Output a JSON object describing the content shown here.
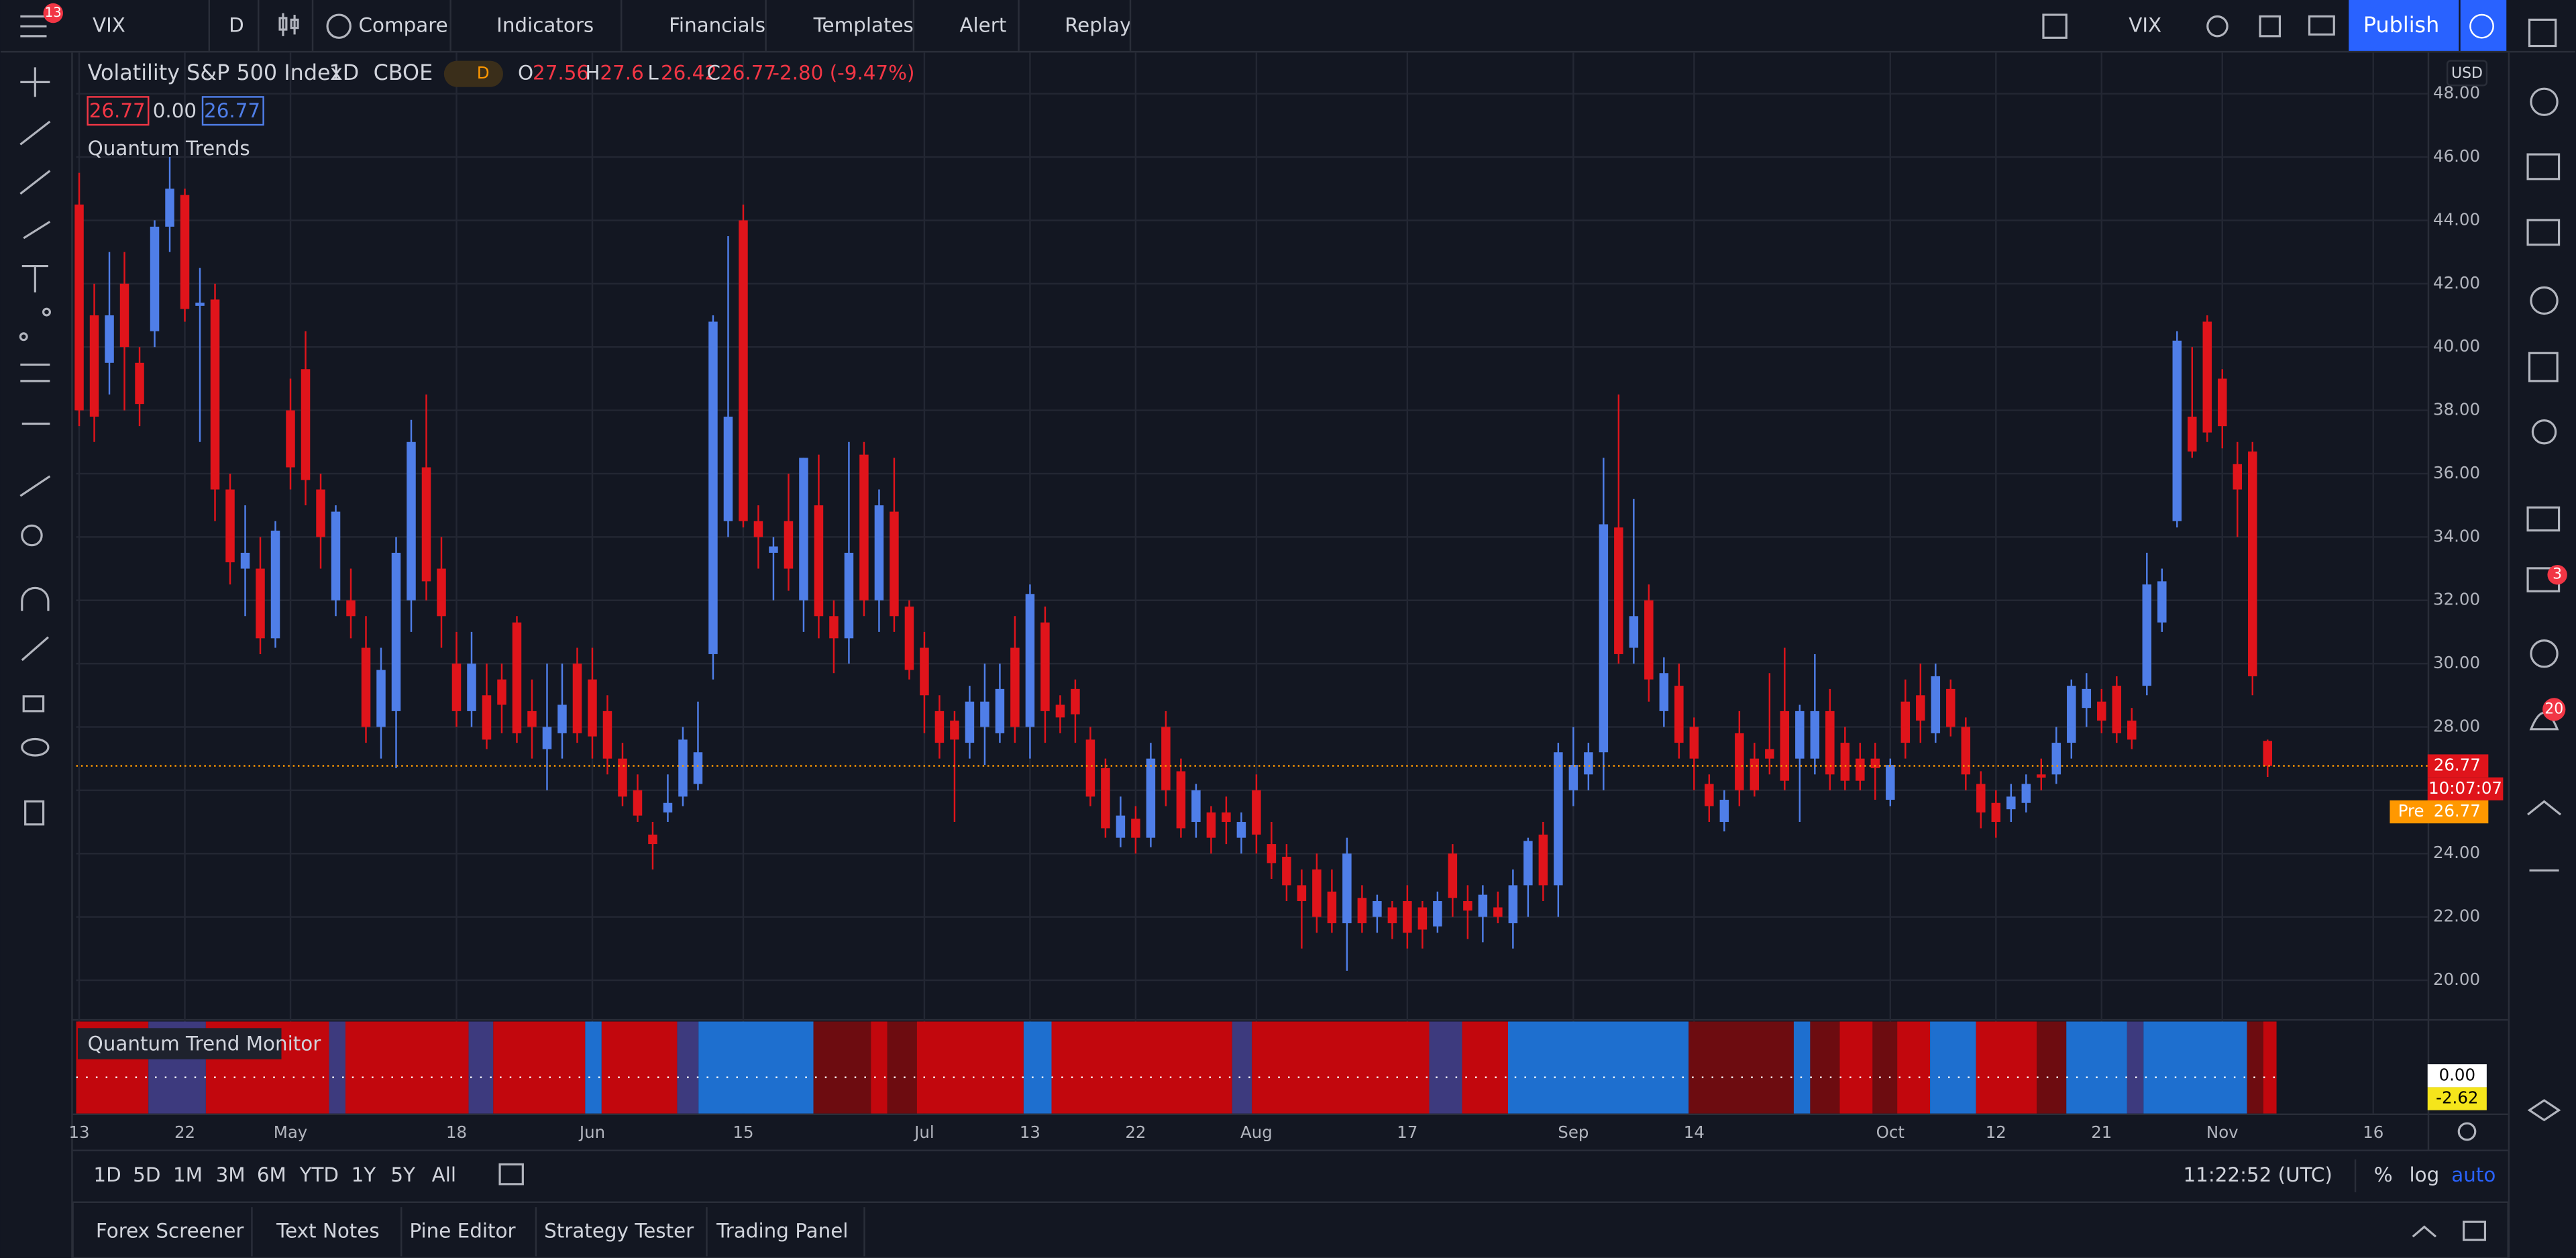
{
  "toolbar": {
    "badge": "13",
    "symbol": "VIX",
    "interval": "D",
    "buttons": [
      "Compare",
      "Indicators",
      "Financials",
      "Templates",
      "Alert",
      "Replay"
    ],
    "layout_symbol": "VIX",
    "publish": "Publish"
  },
  "legend": {
    "interval": "1D",
    "exchange": "CBOE",
    "badge": "D",
    "o": "O",
    "h": "H",
    "l": "L",
    "c": "C",
    "change": "-2.80 (-9.47%)",
    "indicator_values": [
      26.77,
      "0.00",
      26.77
    ],
    "indicator": "Quantum Trends"
  },
  "price_axis": {
    "currency": "USD",
    "countdown": "10:07:07",
    "pre_label": "Pre",
    "pre_price": 26.77
  },
  "lower_pane": {
    "title": "Quantum Trend Monitor",
    "zero_label": "0.00",
    "value": -2.62
  },
  "bottom_bar": {
    "ranges": [
      "1D",
      "5D",
      "1M",
      "3M",
      "6M",
      "YTD",
      "1Y",
      "5Y",
      "All"
    ],
    "time": "11:22:52 (UTC)",
    "percent": "%",
    "log": "log",
    "auto": "auto"
  },
  "tabs": [
    "Forex Screener",
    "Text Notes",
    "Pine Editor",
    "Strategy Tester",
    "Trading Panel"
  ],
  "side_badges": [
    "3",
    "20"
  ],
  "chart_data": {
    "type": "candlestick",
    "title": "Volatility S&P 500 Index",
    "up_color": "#4f7ee8",
    "down_color": "#e0141b",
    "grid": true,
    "open": [
      44.5,
      41,
      39.5,
      42,
      39.5,
      40.5,
      43.8,
      44.8,
      41.3,
      41.5,
      35.5,
      33,
      33,
      30.8,
      38,
      39.3,
      35.5,
      32,
      32,
      30.5,
      28,
      28.5,
      32,
      36.2,
      33,
      30,
      28.5,
      29,
      29.5,
      31.3,
      28.5,
      27.3,
      27.8,
      30,
      29.5,
      28.5,
      27,
      26,
      24.6,
      25.3,
      25.8,
      26.2,
      30.3,
      34.5,
      44,
      34.5,
      33.5,
      34.5,
      32,
      35,
      31.5,
      30.8,
      36.6,
      32,
      34.8,
      31.8,
      30.5,
      28.5,
      28.2,
      27.5,
      28,
      27.8,
      30.5,
      28,
      31.3,
      28.7,
      29.2,
      27.6,
      26.7,
      24.5,
      25.1,
      24.5,
      28,
      26.6,
      25,
      25.3,
      25.3,
      24.5,
      26,
      24.3,
      23.9,
      23,
      23.5,
      22.8,
      21.8,
      22.6,
      22,
      22.3,
      22.5,
      22.3,
      21.7,
      24,
      22.5,
      22,
      22.3,
      21.8,
      23,
      24.6,
      23,
      26,
      26.5,
      27.2,
      34.3,
      30.5,
      32,
      28.5,
      29.3,
      28,
      26.2,
      25,
      27.8,
      27,
      27.3,
      28.5,
      27,
      27,
      28.5,
      27.5,
      27,
      27,
      25.7,
      28.8,
      29,
      27.8,
      29.2,
      28,
      26.2,
      25.6,
      25.4,
      25.6,
      26.5,
      26.5,
      27.5,
      28.6,
      28.8,
      29.3,
      28.2,
      29.3,
      31.3,
      34.5,
      37.8,
      40.8,
      39,
      36.3,
      36.7,
      27.56
    ],
    "high": [
      45.5,
      42,
      43,
      43,
      40,
      44,
      46,
      45,
      42.5,
      42,
      36,
      35,
      34,
      34.5,
      39,
      40.5,
      36,
      35,
      33,
      31.5,
      30.5,
      34,
      37.7,
      38.5,
      34,
      31,
      31,
      30,
      30,
      31.5,
      29.5,
      30,
      30,
      30.5,
      30.5,
      29,
      27.5,
      26.5,
      25,
      26.5,
      28,
      28.8,
      41,
      43.5,
      44.5,
      35,
      34,
      36,
      36.5,
      36.6,
      32,
      37,
      37,
      35.5,
      36.5,
      32,
      31,
      29,
      28.5,
      29.3,
      30,
      30,
      31.5,
      32.5,
      31.8,
      29,
      29.5,
      28,
      27,
      25.8,
      25.5,
      27.5,
      28.5,
      27,
      26.2,
      25.5,
      25.8,
      25.3,
      26.5,
      25,
      24.3,
      23.5,
      24,
      23.5,
      24.5,
      23,
      22.7,
      22.5,
      23,
      22.5,
      22.8,
      24.3,
      23,
      23,
      22.8,
      23.5,
      24.5,
      25,
      27.5,
      28,
      27.5,
      36.5,
      38.5,
      35.2,
      32.5,
      30.2,
      30,
      28.3,
      26.5,
      26,
      28.5,
      27.5,
      29.7,
      30.5,
      28.7,
      30.3,
      29.2,
      28,
      27.5,
      27.5,
      27,
      29.5,
      30,
      30,
      29.5,
      28.3,
      26.6,
      26,
      26.2,
      26.5,
      27,
      28,
      29.5,
      29.7,
      29.2,
      29.6,
      28.6,
      33.5,
      33,
      40.5,
      40,
      41,
      39.3,
      37,
      37,
      27.6
    ],
    "low": [
      37.5,
      37,
      38.5,
      38,
      37.5,
      40,
      43,
      40.8,
      37,
      34.5,
      32.5,
      31.5,
      30.3,
      30.5,
      35.5,
      35,
      33,
      31.5,
      30.8,
      27.5,
      27,
      26.7,
      31,
      32,
      30.5,
      28,
      28,
      27.3,
      27.8,
      27.5,
      27,
      26,
      27,
      27.5,
      27,
      26.5,
      25.5,
      25,
      23.5,
      25,
      25.5,
      26,
      29.5,
      34,
      34.3,
      33,
      32,
      32.3,
      31,
      30.8,
      29.7,
      30,
      31.5,
      31,
      31,
      29.5,
      27.8,
      27,
      25,
      27,
      26.8,
      27.5,
      27.5,
      27,
      27.5,
      27.8,
      27.5,
      25.5,
      24.5,
      24.2,
      24,
      24.2,
      25.5,
      24.5,
      24.5,
      24,
      24.3,
      24,
      24,
      23.2,
      22.5,
      21,
      21.5,
      21.5,
      20.3,
      21.5,
      21.5,
      21.3,
      21,
      21,
      21.5,
      22,
      21.3,
      21.2,
      21.8,
      21,
      22,
      22.5,
      22,
      25.5,
      26,
      26,
      30,
      30,
      28.8,
      28,
      27,
      26,
      25,
      24.7,
      25.5,
      25.8,
      26.5,
      26,
      25,
      26.5,
      26,
      26,
      26,
      25.7,
      25.5,
      27,
      27.5,
      27.5,
      27.7,
      26,
      24.8,
      24.5,
      25,
      25.3,
      26,
      26.2,
      27,
      28,
      27.8,
      27.5,
      27.3,
      29,
      31,
      34.3,
      36.5,
      37,
      36.8,
      34,
      29,
      26.42
    ],
    "close": [
      38,
      37.8,
      41,
      40,
      38.2,
      43.8,
      45,
      41.2,
      41.4,
      35.5,
      33.2,
      33.5,
      30.8,
      34.2,
      36.2,
      35.8,
      34,
      34.8,
      31.5,
      28,
      29.8,
      33.5,
      37,
      32.6,
      31.5,
      28.5,
      30,
      27.6,
      28.7,
      27.8,
      28,
      28,
      28.7,
      27.8,
      27.7,
      27,
      25.8,
      25.2,
      24.3,
      25.6,
      27.6,
      27.2,
      40.8,
      37.8,
      34.5,
      34,
      33.7,
      33,
      36.5,
      31.5,
      30.8,
      33.5,
      32,
      35,
      31.5,
      29.8,
      29,
      27.5,
      27.6,
      28.8,
      28.8,
      29.2,
      28,
      32.2,
      28.5,
      28.3,
      28.4,
      25.8,
      24.8,
      25.2,
      24.5,
      27,
      26,
      24.8,
      26,
      24.5,
      25,
      25,
      24.6,
      23.7,
      23,
      22.5,
      22,
      21.8,
      24,
      21.8,
      22.5,
      21.8,
      21.5,
      21.6,
      22.5,
      22.6,
      22.2,
      22.7,
      22,
      23,
      24.4,
      23,
      27.2,
      26.8,
      27.2,
      34.4,
      30.3,
      31.5,
      29.5,
      29.7,
      27.5,
      27,
      25.5,
      25.7,
      26,
      26,
      27,
      26.3,
      28.5,
      28.5,
      26.5,
      26.3,
      26.3,
      26.7,
      26.8,
      27.5,
      28.2,
      29.6,
      28,
      26.5,
      25.3,
      25,
      25.8,
      26.2,
      26.4,
      27.5,
      29.3,
      29.2,
      28.2,
      27.8,
      27.6,
      32.5,
      32.6,
      40.2,
      36.7,
      37.3,
      37.5,
      35.5,
      29.6,
      26.77
    ],
    "ylim": [
      18.8,
      49.3
    ],
    "yticks": [
      {
        "value": 48,
        "label": "48.00"
      },
      {
        "value": 46,
        "label": "46.00"
      },
      {
        "value": 44,
        "label": "44.00"
      },
      {
        "value": 42,
        "label": "42.00"
      },
      {
        "value": 40,
        "label": "40.00"
      },
      {
        "value": 38,
        "label": "38.00"
      },
      {
        "value": 36,
        "label": "36.00"
      },
      {
        "value": 34,
        "label": "34.00"
      },
      {
        "value": 32,
        "label": "32.00"
      },
      {
        "value": 30,
        "label": "30.00"
      },
      {
        "value": 28,
        "label": "28.00"
      },
      {
        "value": 26,
        "label": "26.00"
      },
      {
        "value": 24,
        "label": "24.00"
      },
      {
        "value": 22,
        "label": "22.00"
      },
      {
        "value": 20,
        "label": "20.00"
      }
    ],
    "xlim": [
      -0.2,
      155.6
    ],
    "xticks": [
      {
        "value": 0,
        "label": "13"
      },
      {
        "value": 7,
        "label": "22"
      },
      {
        "value": 14,
        "label": "May"
      },
      {
        "value": 25,
        "label": "18"
      },
      {
        "value": 34,
        "label": "Jun"
      },
      {
        "value": 44,
        "label": "15"
      },
      {
        "value": 56,
        "label": "Jul"
      },
      {
        "value": 63,
        "label": "13"
      },
      {
        "value": 70,
        "label": "22"
      },
      {
        "value": 78,
        "label": "Aug"
      },
      {
        "value": 88,
        "label": "17"
      },
      {
        "value": 99,
        "label": "Sep"
      },
      {
        "value": 107,
        "label": "14"
      },
      {
        "value": 120,
        "label": "Oct"
      },
      {
        "value": 127,
        "label": "12"
      },
      {
        "value": 134,
        "label": "21"
      },
      {
        "value": 142,
        "label": "Nov"
      },
      {
        "value": 152,
        "label": "16"
      }
    ]
  }
}
